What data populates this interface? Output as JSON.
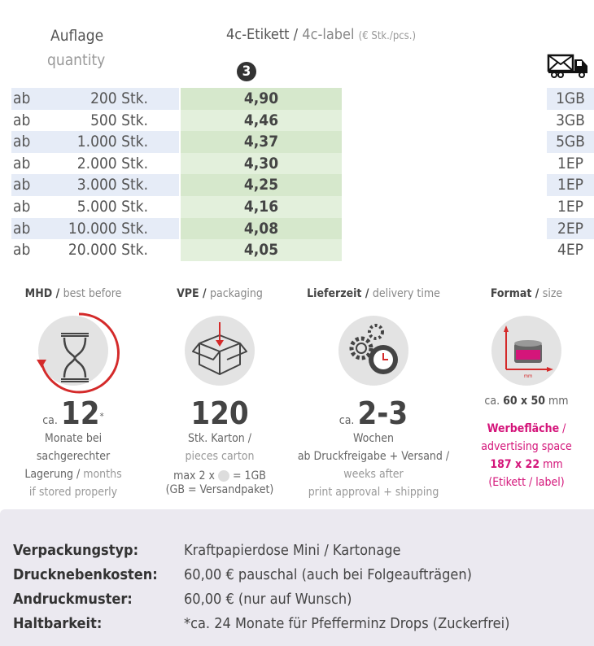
{
  "header": {
    "quantity_de": "Auflage",
    "quantity_en": "quantity",
    "product_de": "4c-Etikett /",
    "product_en": "4c-label",
    "unit": "(€ Stk./pcs.)",
    "badge": "3"
  },
  "rows": [
    {
      "ab": "ab",
      "qty": "200 Stk.",
      "price": "4,90",
      "ship": "1GB"
    },
    {
      "ab": "ab",
      "qty": "500 Stk.",
      "price": "4,46",
      "ship": "3GB"
    },
    {
      "ab": "ab",
      "qty": "1.000 Stk.",
      "price": "4,37",
      "ship": "5GB"
    },
    {
      "ab": "ab",
      "qty": "2.000 Stk.",
      "price": "4,30",
      "ship": "1EP"
    },
    {
      "ab": "ab",
      "qty": "3.000 Stk.",
      "price": "4,25",
      "ship": "1EP"
    },
    {
      "ab": "ab",
      "qty": "5.000 Stk.",
      "price": "4,16",
      "ship": "1EP"
    },
    {
      "ab": "ab",
      "qty": "10.000 Stk.",
      "price": "4,08",
      "ship": "2EP"
    },
    {
      "ab": "ab",
      "qty": "20.000 Stk.",
      "price": "4,05",
      "ship": "4EP"
    }
  ],
  "features": {
    "mhd": {
      "title": "MHD /",
      "title_en": "best before",
      "ca": "ca.",
      "value": "12",
      "star": "*",
      "l1": "Monate bei",
      "l2": "sachgerechter",
      "l3": "Lagerung /",
      "l3_en": "months",
      "l4": "if stored properly"
    },
    "vpe": {
      "title": "VPE /",
      "title_en": "packaging",
      "value": "120",
      "l1": "Stk. Karton /",
      "l2": "pieces carton",
      "l3a": "max 2 x",
      "l3b": "= 1GB",
      "l4": "(GB = Versandpaket)"
    },
    "lz": {
      "title": "Lieferzeit /",
      "title_en": "delivery time",
      "ca": "ca.",
      "value": "2-3",
      "l1": "Wochen",
      "l2": "ab Druckfreigabe + Versand /",
      "l3": "weeks after",
      "l4": "print approval + shipping"
    },
    "fmt": {
      "title": "Format /",
      "title_en": "size",
      "ca": "ca.",
      "size": "60 x 50",
      "unit": "mm",
      "axis": "mm",
      "w1": "Werbefläche",
      "w1b": "/",
      "w2": "advertising space",
      "w3": "187 x 22",
      "w3u": "mm",
      "w4": "(Etikett / label)"
    }
  },
  "info": [
    {
      "k": "Verpackungstyp:",
      "v": "Kraftpapierdose Mini / Kartonage"
    },
    {
      "k": "Drucknebenkosten:",
      "v": "60,00 € pauschal (auch bei Folgeaufträgen)"
    },
    {
      "k": "Andruckmuster:",
      "v": "60,00 € (nur auf Wunsch)"
    },
    {
      "k": "Haltbarkeit:",
      "v": "*ca. 24 Monate für Pfefferminz Drops (Zuckerfrei)"
    }
  ]
}
